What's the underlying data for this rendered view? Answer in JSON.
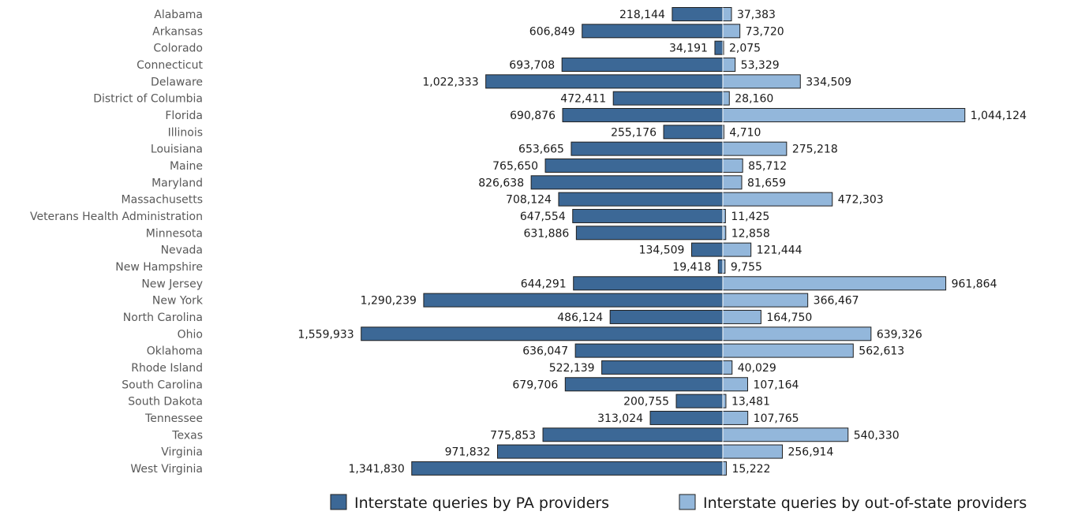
{
  "chart_data": {
    "type": "bar",
    "orientation": "horizontal-diverging",
    "title": "",
    "xlabel": "",
    "ylabel": "",
    "grid": false,
    "legend_position": "bottom",
    "categories": [
      "Alabama",
      "Arkansas",
      "Colorado",
      "Connecticut",
      "Delaware",
      "District of Columbia",
      "Florida",
      "Illinois",
      "Louisiana",
      "Maine",
      "Maryland",
      "Massachusetts",
      "Veterans Health Administration",
      "Minnesota",
      "Nevada",
      "New Hampshire",
      "New Jersey",
      "New York",
      "North Carolina",
      "Ohio",
      "Oklahoma",
      "Rhode Island",
      "South Carolina",
      "South Dakota",
      "Tennessee",
      "Texas",
      "Virginia",
      "West Virginia"
    ],
    "series": [
      {
        "name": "Interstate queries by PA providers",
        "color": "#3c6896",
        "direction": "left",
        "values": [
          218144,
          606849,
          34191,
          693708,
          1022333,
          472411,
          690876,
          255176,
          653665,
          765650,
          826638,
          708124,
          647554,
          631886,
          134509,
          19418,
          644291,
          1290239,
          486124,
          1559933,
          636047,
          522139,
          679706,
          200755,
          313024,
          775853,
          971832,
          1341830
        ],
        "labels": [
          "218,144",
          "606,849",
          "34,191",
          "693,708",
          "1,022,333",
          "472,411",
          "690,876",
          "255,176",
          "653,665",
          "765,650",
          "826,638",
          "708,124",
          "647,554",
          "631,886",
          "134,509",
          "19,418",
          "644,291",
          "1,290,239",
          "486,124",
          "1,559,933",
          "636,047",
          "522,139",
          "679,706",
          "200,755",
          "313,024",
          "775,853",
          "971,832",
          "1,341,830"
        ]
      },
      {
        "name": "Interstate queries by out-of-state providers",
        "color": "#93b7db",
        "direction": "right",
        "values": [
          37383,
          73720,
          2075,
          53329,
          334509,
          28160,
          1044124,
          4710,
          275218,
          85712,
          81659,
          472303,
          11425,
          12858,
          121444,
          9755,
          961864,
          366467,
          164750,
          639326,
          562613,
          40029,
          107164,
          13481,
          107765,
          540330,
          256914,
          15222
        ],
        "labels": [
          "37,383",
          "73,720",
          "2,075",
          "53,329",
          "334,509",
          "28,160",
          "1,044,124",
          "4,710",
          "275,218",
          "85,712",
          "81,659",
          "472,303",
          "11,425",
          "12,858",
          "121,444",
          "9,755",
          "961,864",
          "366,467",
          "164,750",
          "639,326",
          "562,613",
          "40,029",
          "107,164",
          "13,481",
          "107,765",
          "540,330",
          "256,914",
          "15,222"
        ]
      }
    ]
  }
}
